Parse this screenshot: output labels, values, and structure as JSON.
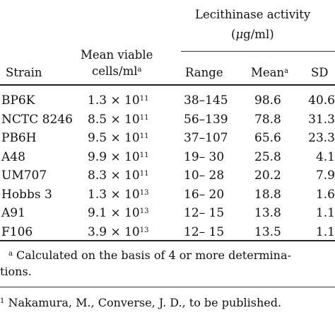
{
  "table": {
    "headers": {
      "strain": "Strain",
      "viable_line1": "Mean viable",
      "viable_line2": "cells/ml",
      "viable_mark": "a",
      "activity_line1": "Lecithinase activity",
      "activity_line2_open": "(",
      "activity_unit_mu": "μ",
      "activity_line2_rest": "g/ml)",
      "range": "Range",
      "mean": "Mean",
      "mean_mark": "a",
      "sd": "SD"
    },
    "rows": [
      {
        "strain": "BP6K",
        "mantissa": "1.3",
        "times": "×",
        "base": "10",
        "exp": "11",
        "range": "38–145",
        "mean": "98.6",
        "sd": "40.6"
      },
      {
        "strain": "NCTC 8246",
        "mantissa": "8.5",
        "times": "×",
        "base": "10",
        "exp": "11",
        "range": "56–139",
        "mean": "78.8",
        "sd": "31.3"
      },
      {
        "strain": "PB6H",
        "mantissa": "9.5",
        "times": "×",
        "base": "10",
        "exp": "11",
        "range": "37–107",
        "mean": "65.6",
        "sd": "23.3"
      },
      {
        "strain": "A48",
        "mantissa": "9.9",
        "times": "×",
        "base": "10",
        "exp": "11",
        "range": "19– 30",
        "mean": "25.8",
        "sd": "4.1"
      },
      {
        "strain": "UM707",
        "mantissa": "8.3",
        "times": "×",
        "base": "10",
        "exp": "11",
        "range": "10– 28",
        "mean": "20.2",
        "sd": "7.9"
      },
      {
        "strain": "Hobbs 3",
        "mantissa": "1.3",
        "times": "×",
        "base": "10",
        "exp": "13",
        "range": "16– 20",
        "mean": "18.8",
        "sd": "1.6"
      },
      {
        "strain": "A91",
        "mantissa": "9.1",
        "times": "×",
        "base": "10",
        "exp": "13",
        "range": "12– 15",
        "mean": "13.8",
        "sd": "1.1"
      },
      {
        "strain": "F106",
        "mantissa": "3.9",
        "times": "×",
        "base": "10",
        "exp": "13",
        "range": "12– 15",
        "mean": "13.5",
        "sd": "1.1"
      }
    ],
    "footnote": {
      "mark": "a",
      "line1": " Calculated on the basis of 4 or more determina-",
      "line2": "tions."
    }
  },
  "page_footnote": {
    "mark": "1",
    "text": " Nakamura, M., Converse, J. D., to be published."
  }
}
